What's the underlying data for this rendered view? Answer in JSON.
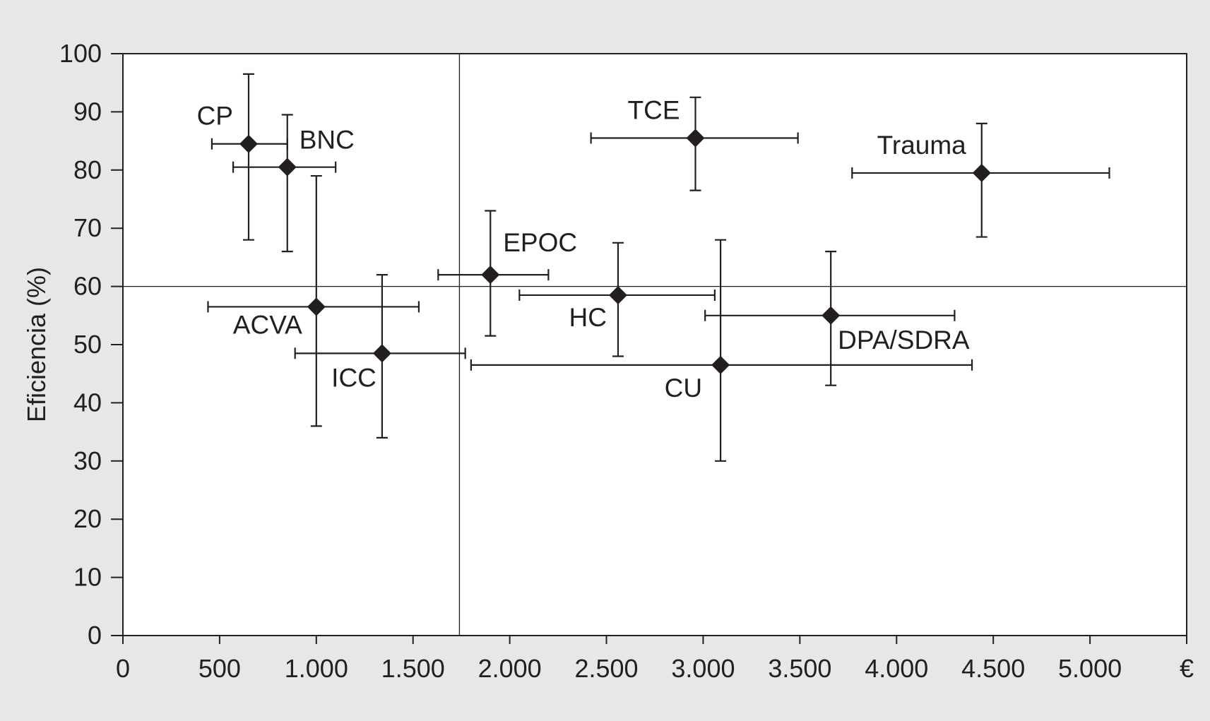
{
  "chart_data": {
    "type": "scatter",
    "title": "",
    "xlabel": "",
    "ylabel": "Eficiencia (%)",
    "x_unit": "€",
    "xlim": [
      0,
      5500
    ],
    "ylim": [
      0,
      100
    ],
    "x_ticks": [
      0,
      500,
      1000,
      1500,
      2000,
      2500,
      3000,
      3500,
      4000,
      4500,
      5000
    ],
    "x_tick_labels": [
      "0",
      "500",
      "1.000",
      "1.500",
      "2.000",
      "2.500",
      "3.000",
      "3.500",
      "4.000",
      "4.500",
      "5.000"
    ],
    "y_ticks": [
      0,
      10,
      20,
      30,
      40,
      50,
      60,
      70,
      80,
      90,
      100
    ],
    "y_tick_labels": [
      "0",
      "10",
      "20",
      "30",
      "40",
      "50",
      "60",
      "70",
      "80",
      "90",
      "100"
    ],
    "grid": false,
    "reference_lines": {
      "x": 1740,
      "y": 60
    },
    "marker": "diamond",
    "color": "#231f20",
    "points": [
      {
        "label": "CP",
        "x": 650,
        "y": 84.5,
        "x_err": [
          460,
          850
        ],
        "y_err": [
          68,
          96.5
        ],
        "label_pos": "upper-left"
      },
      {
        "label": "BNC",
        "x": 850,
        "y": 80.5,
        "x_err": [
          570,
          1100
        ],
        "y_err": [
          66,
          89.5
        ],
        "label_pos": "upper-right"
      },
      {
        "label": "ACVA",
        "x": 1000,
        "y": 56.5,
        "x_err": [
          440,
          1530
        ],
        "y_err": [
          36,
          79
        ],
        "label_pos": "lower-left"
      },
      {
        "label": "ICC",
        "x": 1340,
        "y": 48.5,
        "x_err": [
          890,
          1770
        ],
        "y_err": [
          34,
          62
        ],
        "label_pos": "lower-left"
      },
      {
        "label": "EPOC",
        "x": 1900,
        "y": 62,
        "x_err": [
          1630,
          2200
        ],
        "y_err": [
          51.5,
          73
        ],
        "label_pos": "upper-right"
      },
      {
        "label": "HC",
        "x": 2560,
        "y": 58.5,
        "x_err": [
          2050,
          3060
        ],
        "y_err": [
          48,
          67.5
        ],
        "label_pos": "lower-left"
      },
      {
        "label": "TCE",
        "x": 2960,
        "y": 85.5,
        "x_err": [
          2420,
          3490
        ],
        "y_err": [
          76.5,
          92.5
        ],
        "label_pos": "upper-left"
      },
      {
        "label": "CU",
        "x": 3090,
        "y": 46.5,
        "x_err": [
          1800,
          4390
        ],
        "y_err": [
          30,
          68
        ],
        "label_pos": "lower-left"
      },
      {
        "label": "DPA/SDRA",
        "x": 3660,
        "y": 55,
        "x_err": [
          3010,
          4300
        ],
        "y_err": [
          43,
          66
        ],
        "label_pos": "lower-right"
      },
      {
        "label": "Trauma",
        "x": 4440,
        "y": 79.5,
        "x_err": [
          3770,
          5100
        ],
        "y_err": [
          68.5,
          88
        ],
        "label_pos": "upper-left"
      }
    ]
  }
}
